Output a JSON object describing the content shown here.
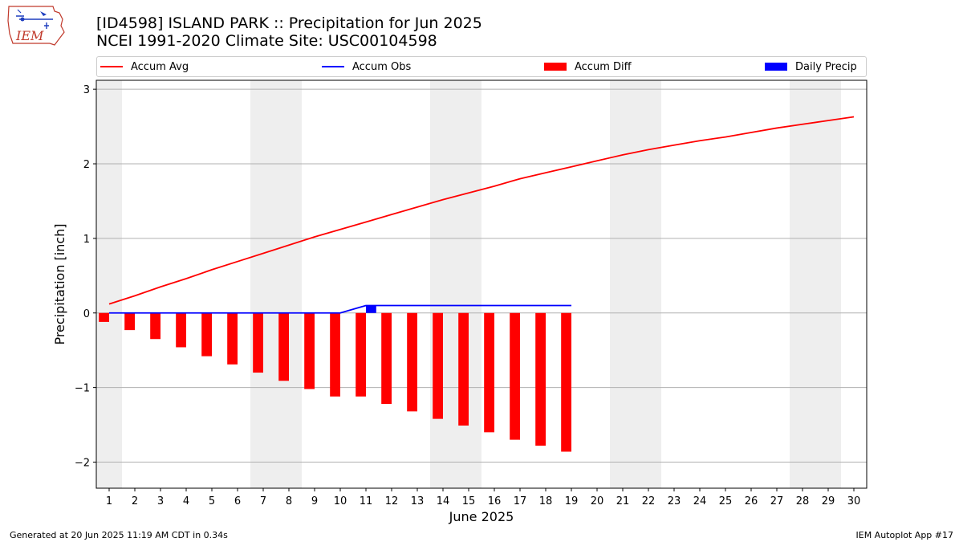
{
  "header": {
    "title_line1": "[ID4598] ISLAND PARK :: Precipitation for Jun 2025",
    "title_line2": "NCEI 1991-2020 Climate Site: USC00104598",
    "logo_text": "IEM"
  },
  "legend": {
    "items": [
      {
        "label": "Accum Avg",
        "color": "#ff0000",
        "kind": "line"
      },
      {
        "label": "Accum Obs",
        "color": "#0000ff",
        "kind": "line"
      },
      {
        "label": "Accum Diff",
        "color": "#ff0000",
        "kind": "box"
      },
      {
        "label": "Daily Precip",
        "color": "#0000ff",
        "kind": "box"
      }
    ]
  },
  "footer": {
    "left": "Generated at 20 Jun 2025 11:19 AM CDT in 0.34s",
    "right": "IEM Autoplot App #17"
  },
  "chart_data": {
    "type": "bar",
    "xlabel": "June 2025",
    "ylabel": "Precipitation [inch]",
    "ylim": [
      -2.35,
      3.12
    ],
    "yticks": [
      -2,
      -1,
      0,
      1,
      2,
      3
    ],
    "ytick_labels": [
      "−2",
      "−1",
      "0",
      "1",
      "2",
      "3"
    ],
    "xlim": [
      0.5,
      30.5
    ],
    "x": [
      1,
      2,
      3,
      4,
      5,
      6,
      7,
      8,
      9,
      10,
      11,
      12,
      13,
      14,
      15,
      16,
      17,
      18,
      19,
      20,
      21,
      22,
      23,
      24,
      25,
      26,
      27,
      28,
      29,
      30
    ],
    "weekend_shading": [
      [
        0.5,
        1.5
      ],
      [
        6.5,
        8.5
      ],
      [
        13.5,
        15.5
      ],
      [
        20.5,
        22.5
      ],
      [
        27.5,
        29.5
      ]
    ],
    "grid": "horizontal",
    "series": [
      {
        "name": "Accum Avg",
        "type": "line",
        "color": "#ff0000",
        "x": [
          1,
          2,
          3,
          4,
          5,
          6,
          7,
          8,
          9,
          10,
          11,
          12,
          13,
          14,
          15,
          16,
          17,
          18,
          19,
          20,
          21,
          22,
          23,
          24,
          25,
          26,
          27,
          28,
          29,
          30
        ],
        "values": [
          0.12,
          0.23,
          0.35,
          0.46,
          0.58,
          0.69,
          0.8,
          0.91,
          1.02,
          1.12,
          1.22,
          1.32,
          1.42,
          1.52,
          1.61,
          1.7,
          1.8,
          1.88,
          1.96,
          2.04,
          2.12,
          2.19,
          2.25,
          2.31,
          2.36,
          2.42,
          2.48,
          2.53,
          2.58,
          2.63
        ]
      },
      {
        "name": "Accum Obs",
        "type": "line",
        "color": "#0000ff",
        "x": [
          1,
          2,
          3,
          4,
          5,
          6,
          7,
          8,
          9,
          10,
          11,
          12,
          13,
          14,
          15,
          16,
          17,
          18,
          19
        ],
        "values": [
          0,
          0,
          0,
          0,
          0,
          0,
          0,
          0,
          0,
          0,
          0.1,
          0.1,
          0.1,
          0.1,
          0.1,
          0.1,
          0.1,
          0.1,
          0.1
        ]
      },
      {
        "name": "Accum Diff",
        "type": "bar",
        "color": "#ff0000",
        "x": [
          1,
          2,
          3,
          4,
          5,
          6,
          7,
          8,
          9,
          10,
          11,
          12,
          13,
          14,
          15,
          16,
          17,
          18,
          19
        ],
        "values": [
          -0.12,
          -0.23,
          -0.35,
          -0.46,
          -0.58,
          -0.69,
          -0.8,
          -0.91,
          -1.02,
          -1.12,
          -1.12,
          -1.22,
          -1.32,
          -1.42,
          -1.51,
          -1.6,
          -1.7,
          -1.78,
          -1.86
        ]
      },
      {
        "name": "Daily Precip",
        "type": "bar",
        "color": "#0000ff",
        "x": [
          11
        ],
        "values": [
          0.1
        ]
      }
    ]
  }
}
